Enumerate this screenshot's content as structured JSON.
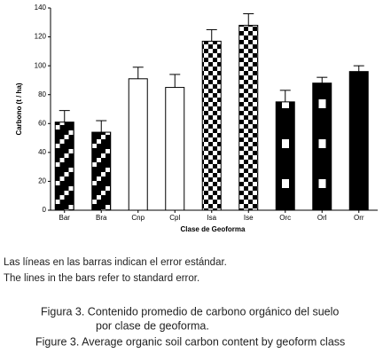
{
  "chart_data": {
    "type": "bar",
    "categories": [
      "Bar",
      "Bra",
      "Cnp",
      "Cpl",
      "Isa",
      "Ise",
      "Orc",
      "Orl",
      "Orr"
    ],
    "values": [
      61,
      54,
      91,
      85,
      117,
      128,
      75,
      88,
      96
    ],
    "errors": [
      8,
      8,
      8,
      9,
      8,
      8,
      8,
      4,
      4
    ],
    "color": "#000000",
    "ylabel": "Carbono (t / ha)",
    "xlabel": "Clase de Geoforma",
    "ylim": [
      0,
      140
    ],
    "yticks": [
      0,
      20,
      40,
      60,
      80,
      100,
      120,
      140
    ]
  },
  "notes": [
    "Las líneas en las barras indican el error estándar.",
    "The lines in the bars refer to standard error."
  ],
  "caption": [
    "Figura 3. Contenido promedio de carbono orgánico del suelo",
    "por clase de geoforma.",
    "Figure 3. Average organic soil carbon content by geoform class"
  ]
}
